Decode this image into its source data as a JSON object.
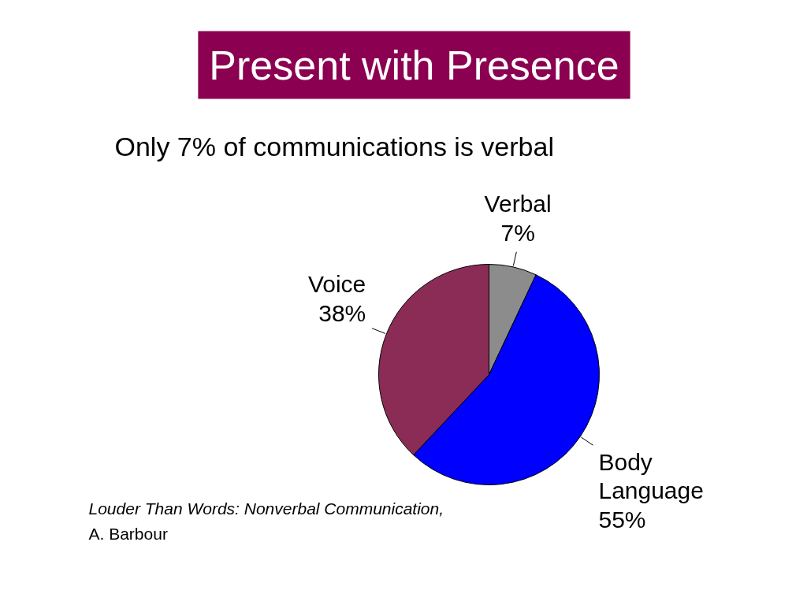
{
  "chart_data": {
    "type": "pie",
    "title": "Present with Presence",
    "subtitle": "Only 7% of communications is verbal",
    "categories": [
      "Verbal",
      "Body Language",
      "Voice"
    ],
    "values": [
      7,
      55,
      38
    ],
    "colors": [
      "#8c8c8c",
      "#0000ff",
      "#8b2c57"
    ],
    "value_labels": [
      "7%",
      "55%",
      "38%"
    ],
    "annotations": [
      "Louder Than Words: Nonverbal Communication,",
      "A. Barbour"
    ]
  }
}
